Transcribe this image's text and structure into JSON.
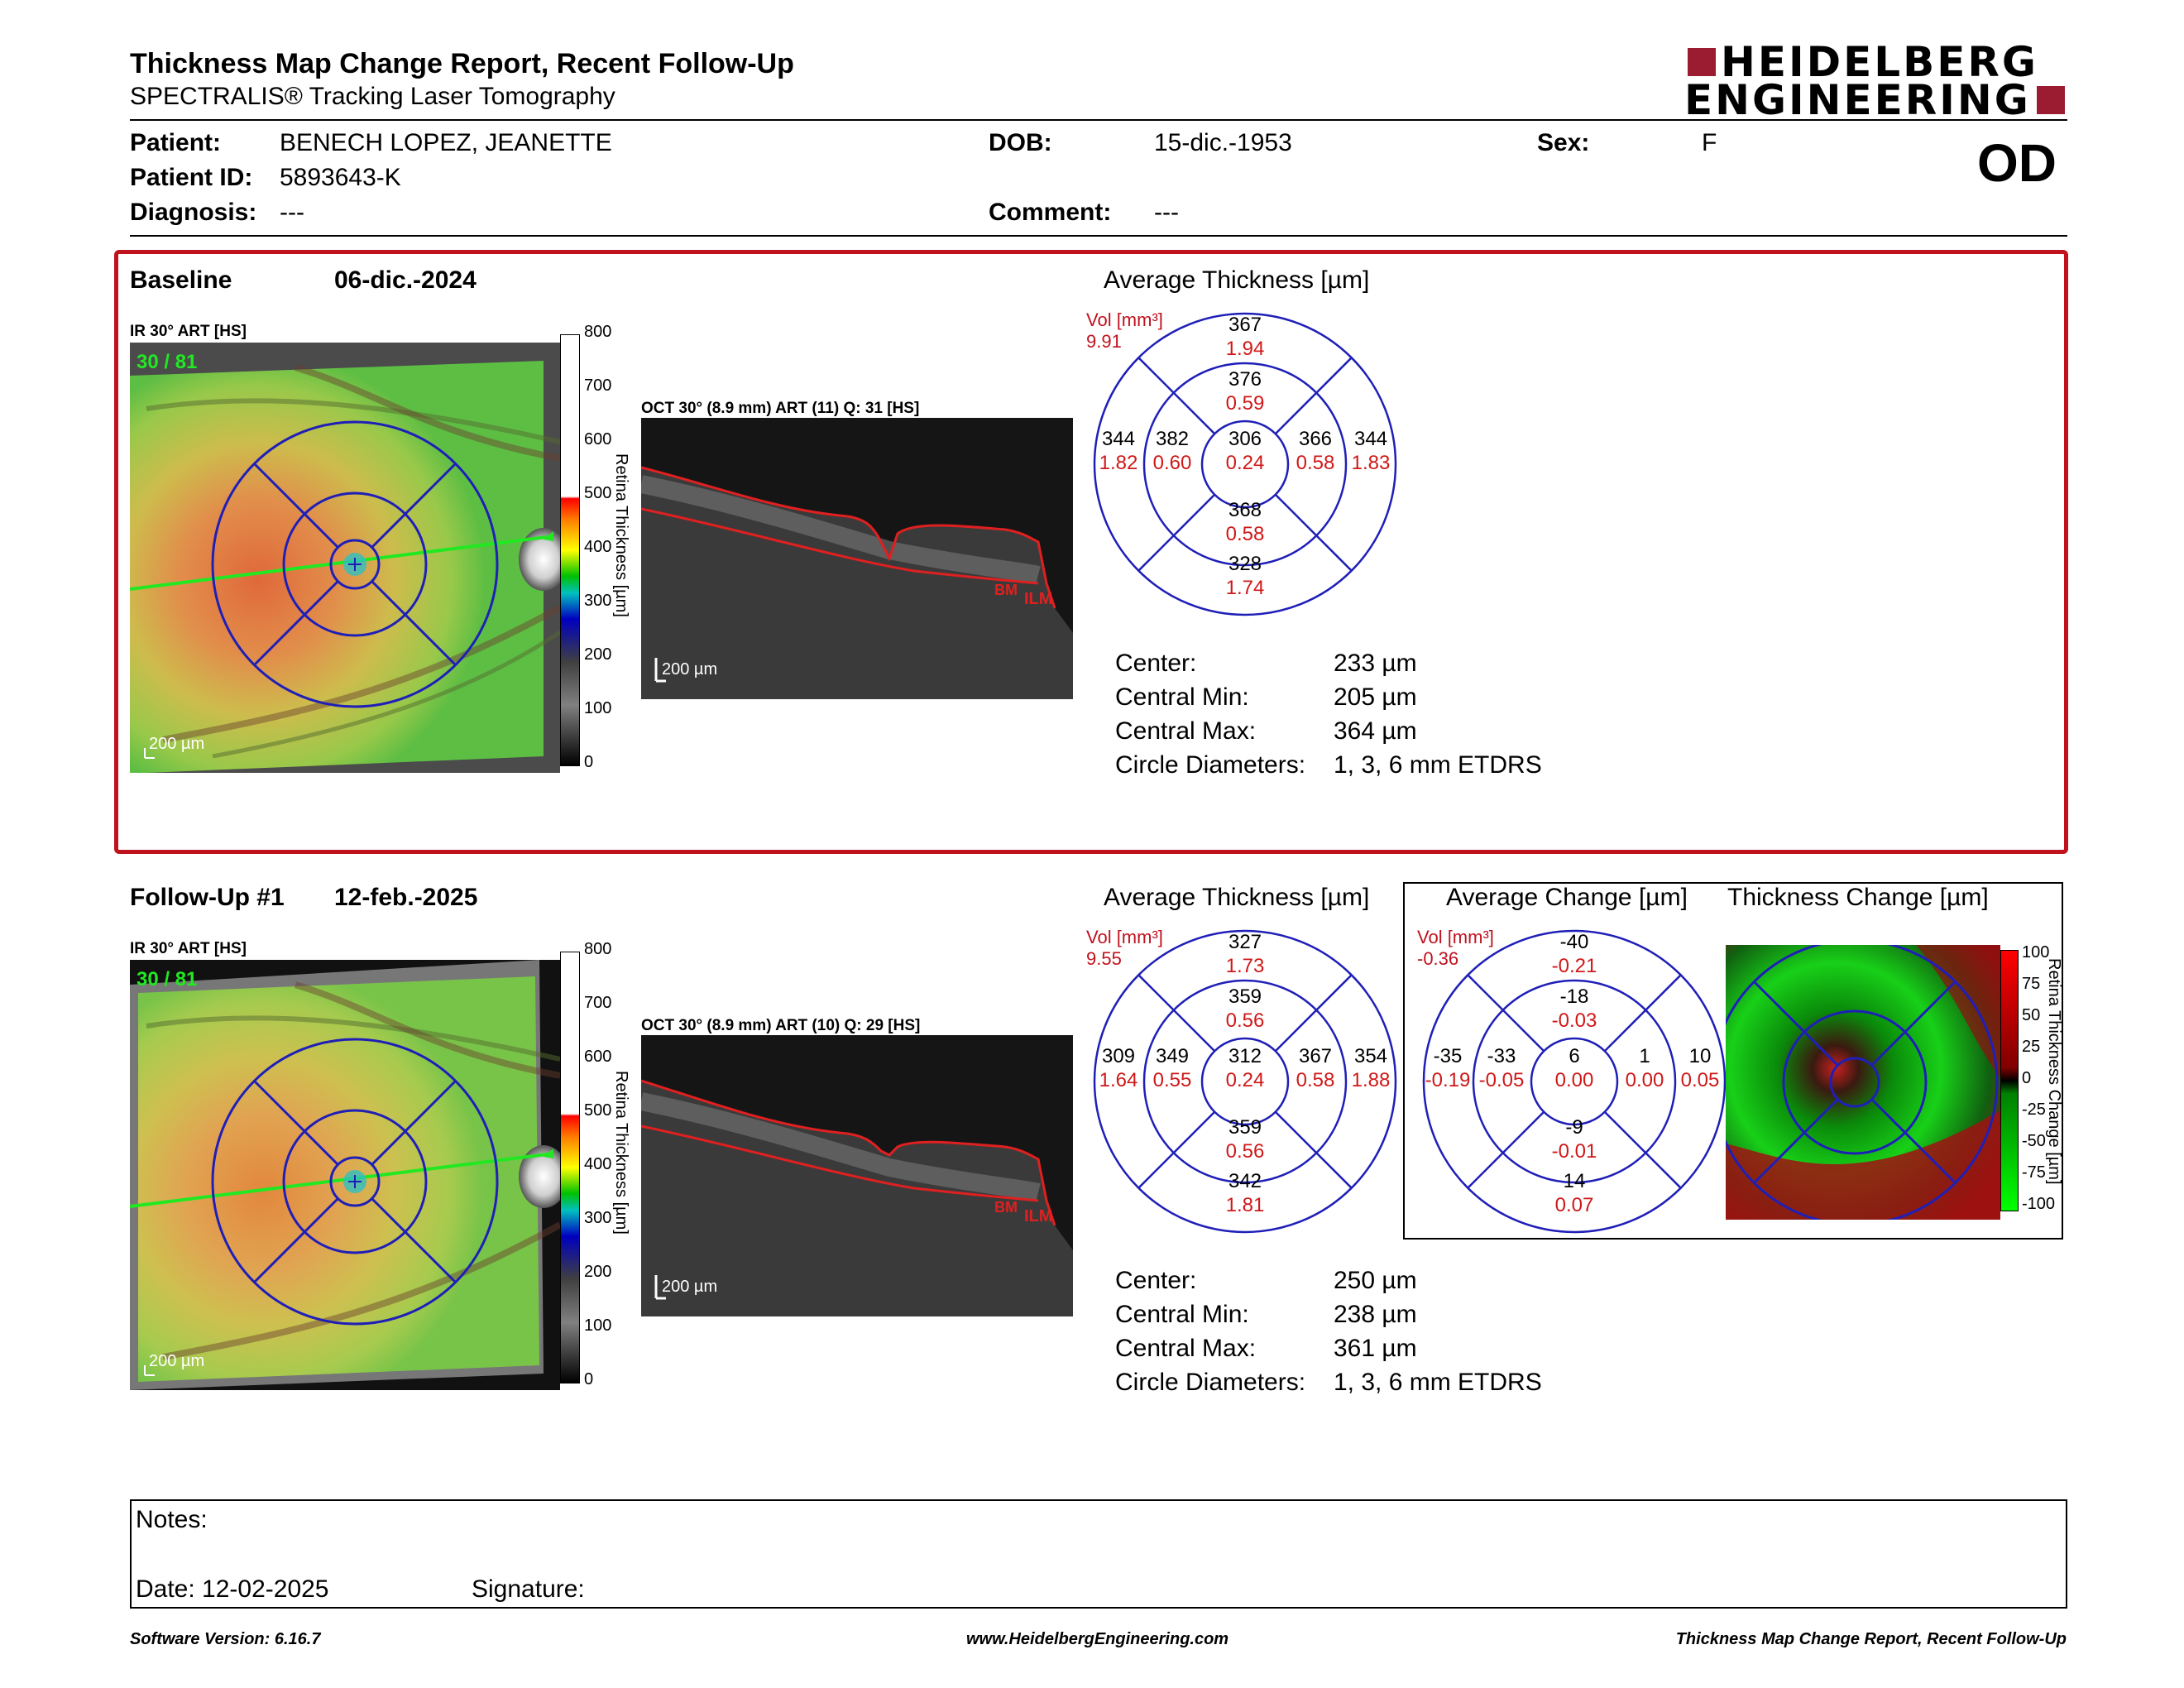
{
  "header": {
    "title": "Thickness Map Change Report, Recent Follow-Up",
    "subtitle": "SPECTRALIS® Tracking Laser Tomography",
    "logo_line1": "HEIDELBERG",
    "logo_line2": "ENGINEERING",
    "brand_color": "#9b1b30"
  },
  "patient": {
    "patient_label": "Patient:",
    "patient_value": "BENECH LOPEZ, JEANETTE",
    "id_label": "Patient ID:",
    "id_value": "5893643-K",
    "diagnosis_label": "Diagnosis:",
    "diagnosis_value": "---",
    "dob_label": "DOB:",
    "dob_value": "15-dic.-1953",
    "comment_label": "Comment:",
    "comment_value": "---",
    "sex_label": "Sex:",
    "sex_value": "F",
    "eye": "OD"
  },
  "colorbar_ticks": [
    "800",
    "700",
    "600",
    "500",
    "400",
    "300",
    "200",
    "100",
    "0"
  ],
  "colorbar_label": "Retina Thickness [µm]",
  "change_ticks": [
    "100",
    "75",
    "50",
    "25",
    "0",
    "-25",
    "-50",
    "-75",
    "-100"
  ],
  "change_bar_label": "Retina Thickness Change [µm]",
  "baseline": {
    "label": "Baseline",
    "date": "06-dic.-2024",
    "ir_label": "IR 30° ART [HS]",
    "ir_overlay": "30 / 81",
    "scale": "200 µm",
    "oct_label": "OCT 30° (8.9 mm) ART (11) Q: 31 [HS]",
    "oct_scale": "200 µm",
    "bm": "BM",
    "ilm": "ILM",
    "avg_title": "Average Thickness [µm]",
    "vol_label": "Vol [mm³]",
    "vol_value": "9.91",
    "etdrs": {
      "outer_top": [
        "367",
        "1.94"
      ],
      "inner_top": [
        "376",
        "0.59"
      ],
      "outer_left": [
        "344",
        "1.82"
      ],
      "inner_left": [
        "382",
        "0.60"
      ],
      "center": [
        "306",
        "0.24"
      ],
      "inner_right": [
        "366",
        "0.58"
      ],
      "outer_right": [
        "344",
        "1.83"
      ],
      "inner_bottom": [
        "368",
        "0.58"
      ],
      "outer_bottom": [
        "328",
        "1.74"
      ]
    },
    "stats": [
      {
        "label": "Center:",
        "value": "233 µm"
      },
      {
        "label": "Central Min:",
        "value": "205 µm"
      },
      {
        "label": "Central Max:",
        "value": "364 µm"
      },
      {
        "label": "Circle Diameters:",
        "value": "1, 3, 6 mm ETDRS"
      }
    ]
  },
  "followup": {
    "label": "Follow-Up #1",
    "date": "12-feb.-2025",
    "ir_label": "IR 30° ART [HS]",
    "ir_overlay": "30 / 81",
    "scale": "200 µm",
    "oct_label": "OCT 30° (8.9 mm) ART (10) Q: 29 [HS]",
    "oct_scale": "200 µm",
    "bm": "BM",
    "ilm": "ILM",
    "avg_title": "Average Thickness [µm]",
    "vol_label": "Vol [mm³]",
    "vol_value": "9.55",
    "etdrs": {
      "outer_top": [
        "327",
        "1.73"
      ],
      "inner_top": [
        "359",
        "0.56"
      ],
      "outer_left": [
        "309",
        "1.64"
      ],
      "inner_left": [
        "349",
        "0.55"
      ],
      "center": [
        "312",
        "0.24"
      ],
      "inner_right": [
        "367",
        "0.58"
      ],
      "outer_right": [
        "354",
        "1.88"
      ],
      "inner_bottom": [
        "359",
        "0.56"
      ],
      "outer_bottom": [
        "342",
        "1.81"
      ]
    },
    "stats": [
      {
        "label": "Center:",
        "value": "250 µm"
      },
      {
        "label": "Central Min:",
        "value": "238 µm"
      },
      {
        "label": "Central Max:",
        "value": "361 µm"
      },
      {
        "label": "Circle Diameters:",
        "value": "1, 3, 6 mm ETDRS"
      }
    ]
  },
  "change": {
    "avg_title": "Average Change [µm]",
    "map_title": "Thickness Change [µm]",
    "vol_label": "Vol [mm³]",
    "vol_value": "-0.36",
    "etdrs": {
      "outer_top": [
        "-40",
        "-0.21"
      ],
      "inner_top": [
        "-18",
        "-0.03"
      ],
      "outer_left": [
        "-35",
        "-0.19"
      ],
      "inner_left": [
        "-33",
        "-0.05"
      ],
      "center": [
        "6",
        "0.00"
      ],
      "inner_right": [
        "1",
        "0.00"
      ],
      "outer_right": [
        "10",
        "0.05"
      ],
      "inner_bottom": [
        "-9",
        "-0.01"
      ],
      "outer_bottom": [
        "14",
        "0.07"
      ]
    }
  },
  "notes": {
    "notes_label": "Notes:",
    "date_label": "Date: 12-02-2025",
    "signature_label": "Signature:"
  },
  "footer": {
    "left": "Software Version: 6.16.7",
    "center": "www.HeidelbergEngineering.com",
    "right": "Thickness Map Change Report, Recent Follow-Up"
  }
}
